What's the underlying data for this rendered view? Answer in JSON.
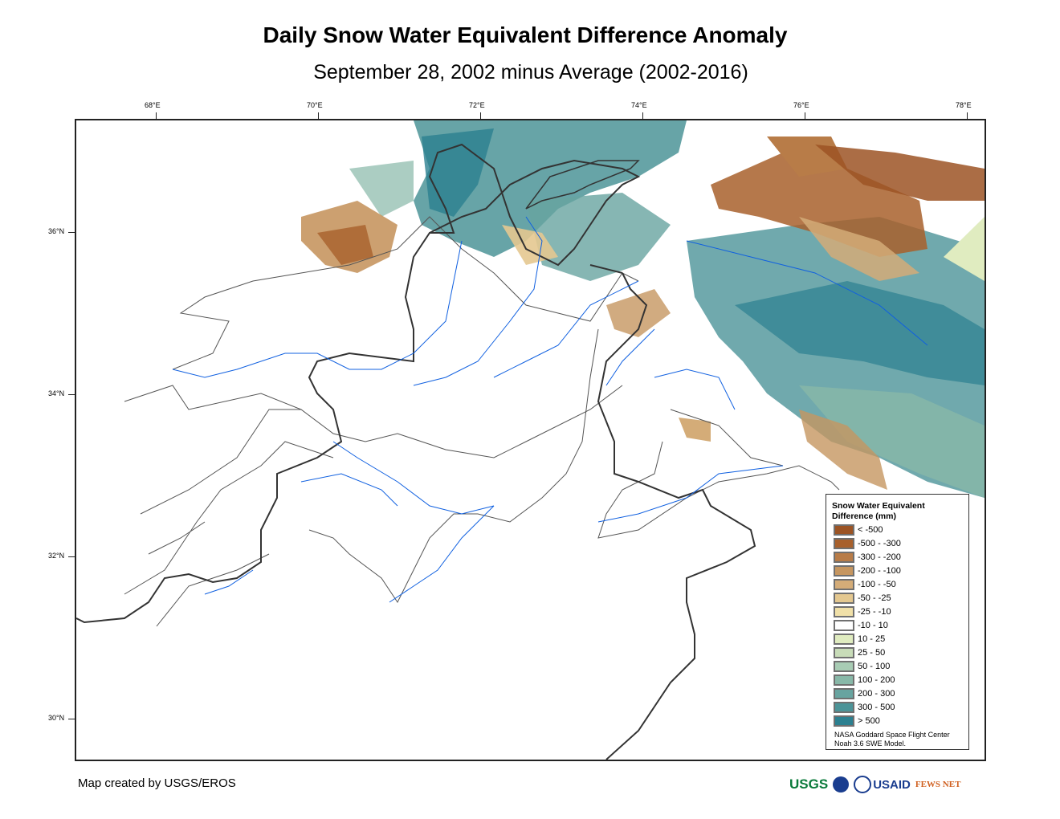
{
  "title": "Daily Snow Water Equivalent Difference Anomaly",
  "subtitle": "September 28, 2002 minus Average (2002-2016)",
  "axes": {
    "longitude_ticks": [
      {
        "value": 68,
        "label": "68°E"
      },
      {
        "value": 70,
        "label": "70°E"
      },
      {
        "value": 72,
        "label": "72°E"
      },
      {
        "value": 74,
        "label": "74°E"
      },
      {
        "value": 76,
        "label": "76°E"
      },
      {
        "value": 78,
        "label": "78°E"
      }
    ],
    "latitude_ticks": [
      {
        "value": 36,
        "label": "36°N"
      },
      {
        "value": 34,
        "label": "34°N"
      },
      {
        "value": 32,
        "label": "32°N"
      },
      {
        "value": 30,
        "label": "30°N"
      }
    ]
  },
  "legend": {
    "title_line1": "Snow Water Equivalent",
    "title_line2": "Difference (mm)",
    "items": [
      {
        "label": "< -500",
        "color": "#9c5424"
      },
      {
        "label": "-500 - -300",
        "color": "#a8602c"
      },
      {
        "label": "-300 - -200",
        "color": "#b87c48"
      },
      {
        "label": "-200 - -100",
        "color": "#c69660"
      },
      {
        "label": "-100 - -50",
        "color": "#d4ac78"
      },
      {
        "label": "-50 - -25",
        "color": "#e4c890"
      },
      {
        "label": "-25 - -10",
        "color": "#f0e0a8"
      },
      {
        "label": "-10 - 10",
        "color": "#ffffff"
      },
      {
        "label": "10 - 25",
        "color": "#e0ecc0"
      },
      {
        "label": "25 - 50",
        "color": "#c8dcb8"
      },
      {
        "label": "50 - 100",
        "color": "#a8ccb4"
      },
      {
        "label": "100 - 200",
        "color": "#88b8a8"
      },
      {
        "label": "200 - 300",
        "color": "#68a4a0"
      },
      {
        "label": "300 - 500",
        "color": "#4c9498"
      },
      {
        "label": "> 500",
        "color": "#2c8090"
      }
    ],
    "note_line1": "NASA Goddard Space Flight Center",
    "note_line2": "Noah 3.6 SWE Model."
  },
  "credit": "Map created by USGS/EROS",
  "logos": {
    "usgs": "USGS",
    "nasa": "NASA",
    "usaid": "USAID",
    "fewsnet": "FEWS NET"
  }
}
